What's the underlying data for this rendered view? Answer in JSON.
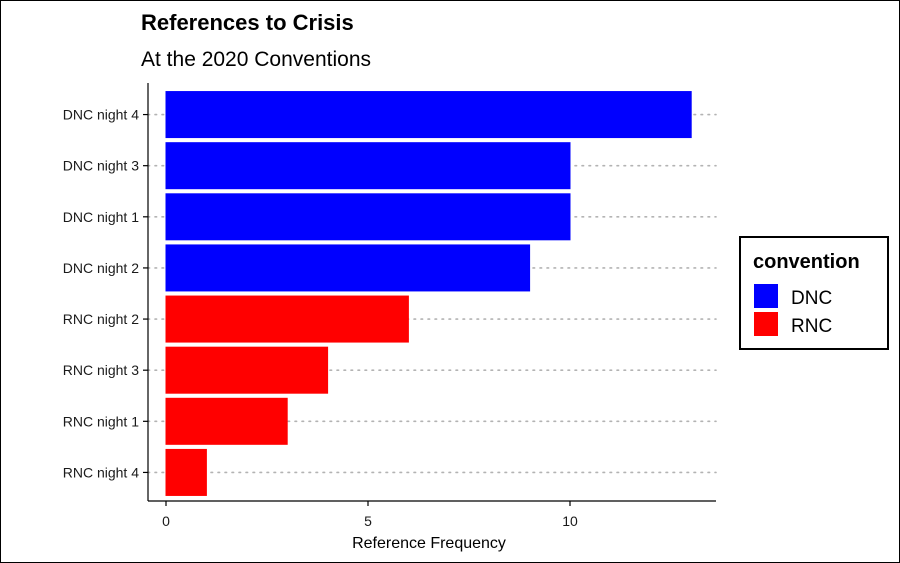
{
  "chart_data": {
    "type": "bar",
    "orientation": "horizontal",
    "title": "References to Crisis",
    "subtitle": "At the 2020 Conventions",
    "xlabel": "Reference Frequency",
    "ylabel": "",
    "xlim": [
      0,
      13.7
    ],
    "x_ticks": [
      0,
      5,
      10
    ],
    "grid": "dotted horizontal",
    "categories": [
      "DNC night 4",
      "DNC night 3",
      "DNC night 1",
      "DNC night 2",
      "RNC night 2",
      "RNC night 3",
      "RNC night 1",
      "RNC night 4"
    ],
    "values": [
      13,
      10,
      10,
      9,
      6,
      4,
      3,
      1
    ],
    "groups": [
      "DNC",
      "DNC",
      "DNC",
      "DNC",
      "RNC",
      "RNC",
      "RNC",
      "RNC"
    ],
    "legend": {
      "title": "convention",
      "placement": "right",
      "entries": [
        {
          "name": "DNC",
          "color": "#0000ff"
        },
        {
          "name": "RNC",
          "color": "#ff0000"
        }
      ]
    }
  }
}
